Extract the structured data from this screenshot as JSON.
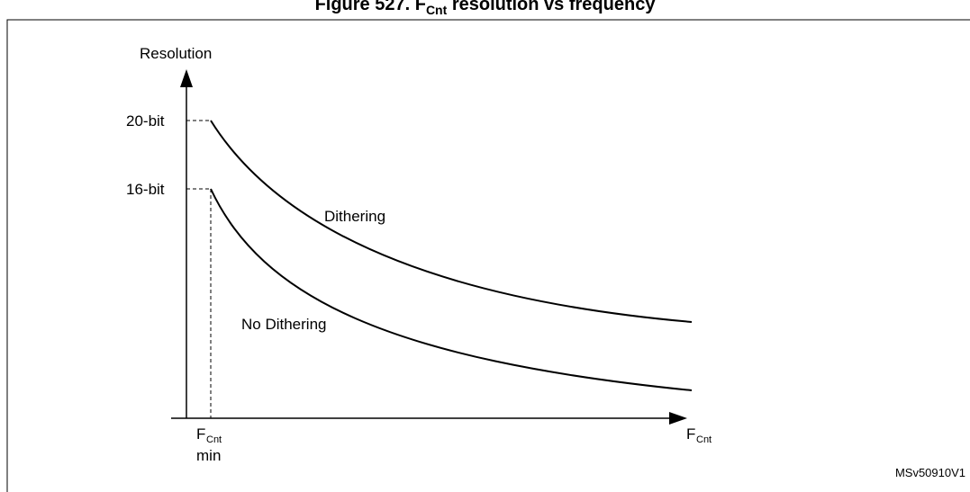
{
  "figure": {
    "title_prefix": "Figure 527. F",
    "title_sub": "Cnt",
    "title_suffix": " resolution vs frequency",
    "code": "MSv50910V1"
  },
  "axes": {
    "y_label": "Resolution",
    "x_label_main": "F",
    "x_label_sub": "Cnt",
    "x_min_label_main": "F",
    "x_min_label_sub": "Cnt",
    "x_min_label_line2": "min"
  },
  "levels": {
    "high": "20-bit",
    "low": "16-bit"
  },
  "curves": {
    "upper": "Dithering",
    "lower": "No Dithering"
  }
}
